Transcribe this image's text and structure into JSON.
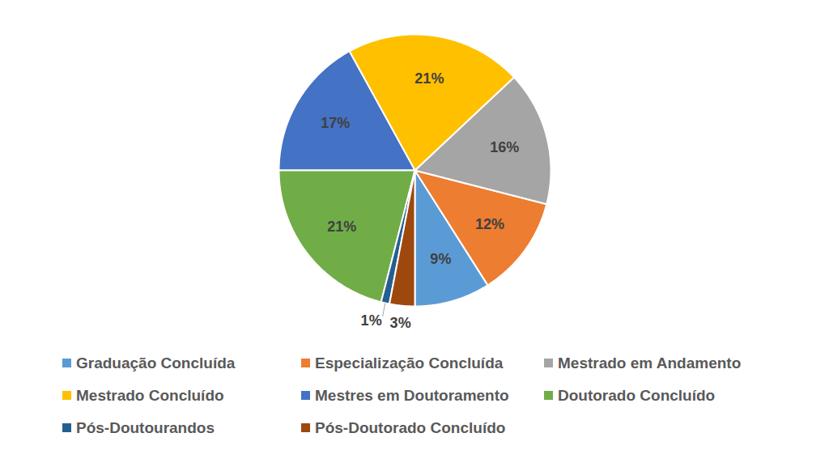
{
  "chart_data": {
    "type": "pie",
    "categories": [
      "Graduação Concluída",
      "Especialização Concluída",
      "Mestrado em Andamento",
      "Mestrado Concluído",
      "Mestres em Doutoramento",
      "Doutorado Concluído",
      "Pós-Doutourandos",
      "Pós-Doutorado Concluído"
    ],
    "values": [
      9,
      12,
      16,
      21,
      17,
      21,
      1,
      3
    ],
    "value_labels": [
      "9%",
      "12%",
      "16%",
      "21%",
      "17%",
      "21%",
      "1%",
      "3%"
    ],
    "colors": [
      "#5B9BD5",
      "#ED7D31",
      "#A5A5A5",
      "#FFC000",
      "#4472C4",
      "#70AD47",
      "#255E91",
      "#9E480E"
    ],
    "data_labels": true,
    "legend": "bottom"
  }
}
